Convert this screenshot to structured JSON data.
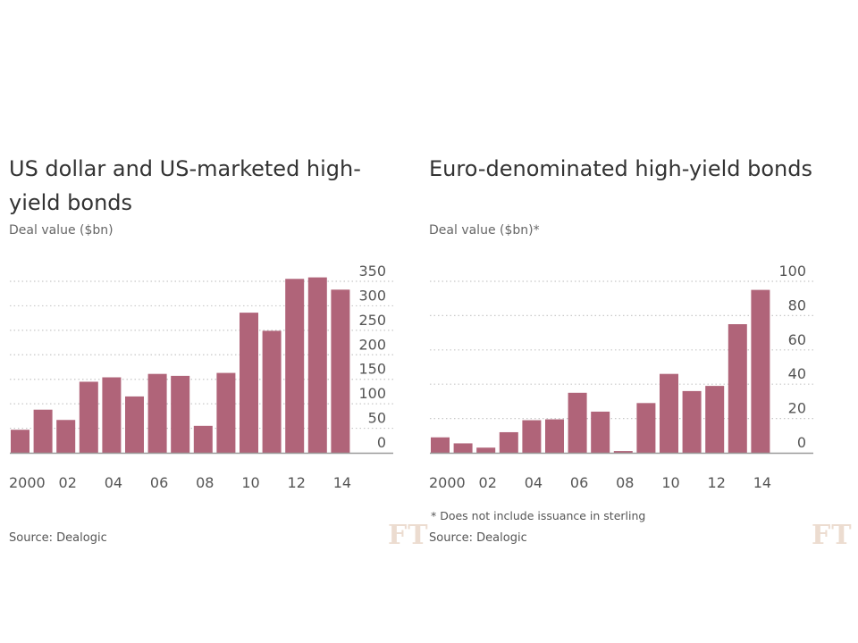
{
  "bar_color": "#b06479",
  "grid_color": "#c8c8c8",
  "axis_color": "#999999",
  "logo_text": "FT",
  "chart_data": [
    {
      "type": "bar",
      "title": "US dollar and US-marketed high-yield bonds",
      "subtitle": "Deal value ($bn)",
      "xlabel": "",
      "ylabel": "Deal value ($bn)",
      "categories": [
        "2000",
        "2001",
        "2002",
        "2003",
        "2004",
        "2005",
        "2006",
        "2007",
        "2008",
        "2009",
        "2010",
        "2011",
        "2012",
        "2013",
        "2014"
      ],
      "values": [
        47,
        88,
        67,
        145,
        154,
        115,
        161,
        157,
        55,
        163,
        286,
        249,
        355,
        358,
        333
      ],
      "x_tick_labels": [
        "2000",
        "02",
        "04",
        "06",
        "08",
        "10",
        "12",
        "14"
      ],
      "y_ticks": [
        0,
        50,
        100,
        150,
        200,
        250,
        300,
        350
      ],
      "y_tick_labels": [
        "0",
        "50",
        "100",
        "150",
        "200",
        "250",
        "300",
        "350"
      ],
      "ylim": [
        0,
        350
      ],
      "grid": true,
      "y_axis_side": "right",
      "footnote": "",
      "source": "Source: Dealogic"
    },
    {
      "type": "bar",
      "title": "Euro-denominated high-yield bonds",
      "subtitle": "Deal value ($bn)*",
      "xlabel": "",
      "ylabel": "Deal value ($bn)",
      "categories": [
        "2000",
        "2001",
        "2002",
        "2003",
        "2004",
        "2005",
        "2006",
        "2007",
        "2008",
        "2009",
        "2010",
        "2011",
        "2012",
        "2013",
        "2014"
      ],
      "values": [
        9,
        5.5,
        3,
        12,
        19,
        19.5,
        35,
        24,
        1,
        29,
        46,
        36,
        39,
        75,
        95
      ],
      "x_tick_labels": [
        "2000",
        "02",
        "04",
        "06",
        "08",
        "10",
        "12",
        "14"
      ],
      "y_ticks": [
        0,
        20,
        40,
        60,
        80,
        100
      ],
      "y_tick_labels": [
        "0",
        "20",
        "40",
        "60",
        "80",
        "100"
      ],
      "ylim": [
        0,
        100
      ],
      "grid": true,
      "y_axis_side": "right",
      "footnote": "* Does not include issuance in sterling",
      "source": "Source: Dealogic"
    }
  ]
}
